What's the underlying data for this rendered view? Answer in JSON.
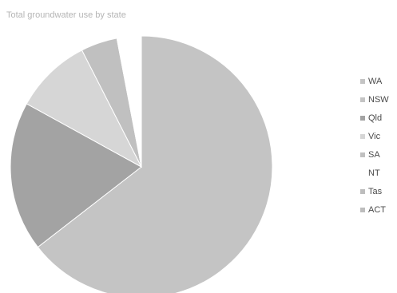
{
  "header": {
    "title_fragment": "",
    "subtitle": "Total groundwater use by state"
  },
  "chart_data": {
    "type": "pie",
    "title": "",
    "subtitle": "Total groundwater use by state",
    "legend_position": "right",
    "categories": [
      "WA",
      "NSW",
      "Qld",
      "Vic",
      "SA",
      "NT",
      "Tas",
      "ACT"
    ],
    "values": [
      64.5,
      0,
      18.5,
      9.5,
      4.5,
      3.0,
      0,
      0
    ],
    "colors": [
      "#c4c4c4",
      "#c4c4c4",
      "#a3a3a3",
      "#d6d6d6",
      "#c0c0c0",
      "#ffffff",
      "#bdbdbd",
      "#bdbdbd"
    ]
  }
}
